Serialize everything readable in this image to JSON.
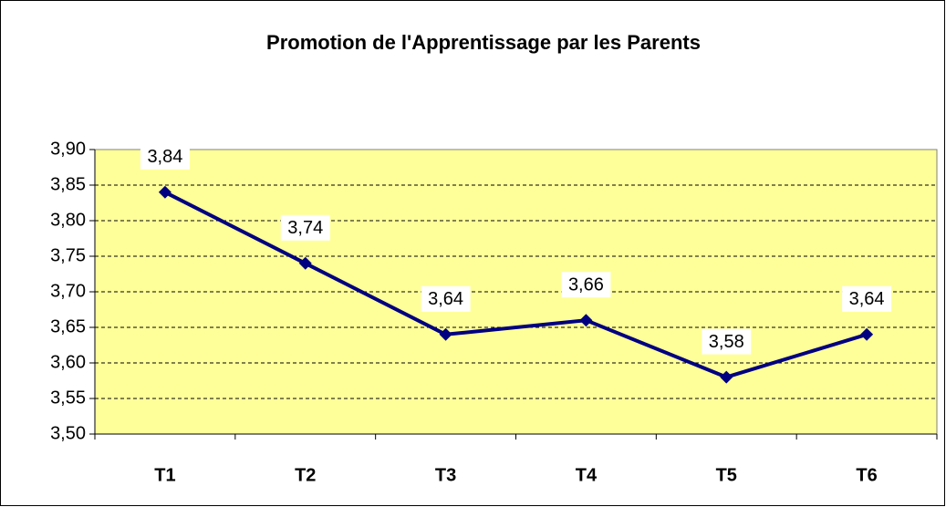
{
  "chart_data": {
    "type": "line",
    "title": "Promotion de l'Apprentissage par les Parents",
    "categories": [
      "T1",
      "T2",
      "T3",
      "T4",
      "T5",
      "T6"
    ],
    "series": [
      {
        "name": "Promotion de l'Apprentissage par les Parents",
        "color": "#000080",
        "values": [
          3.84,
          3.74,
          3.64,
          3.66,
          3.58,
          3.64
        ],
        "value_labels": [
          "3,84",
          "3,74",
          "3,64",
          "3,66",
          "3,58",
          "3,64"
        ]
      }
    ],
    "ylim": [
      3.5,
      3.9
    ],
    "yticks": [
      {
        "value": 3.5,
        "label": "3,50"
      },
      {
        "value": 3.55,
        "label": "3,55"
      },
      {
        "value": 3.6,
        "label": "3,60"
      },
      {
        "value": 3.65,
        "label": "3,65"
      },
      {
        "value": 3.7,
        "label": "3,70"
      },
      {
        "value": 3.75,
        "label": "3,75"
      },
      {
        "value": 3.8,
        "label": "3,80"
      },
      {
        "value": 3.85,
        "label": "3,85"
      },
      {
        "value": 3.9,
        "label": "3,90"
      }
    ],
    "grid": true,
    "plot_background": "#ffff99"
  }
}
